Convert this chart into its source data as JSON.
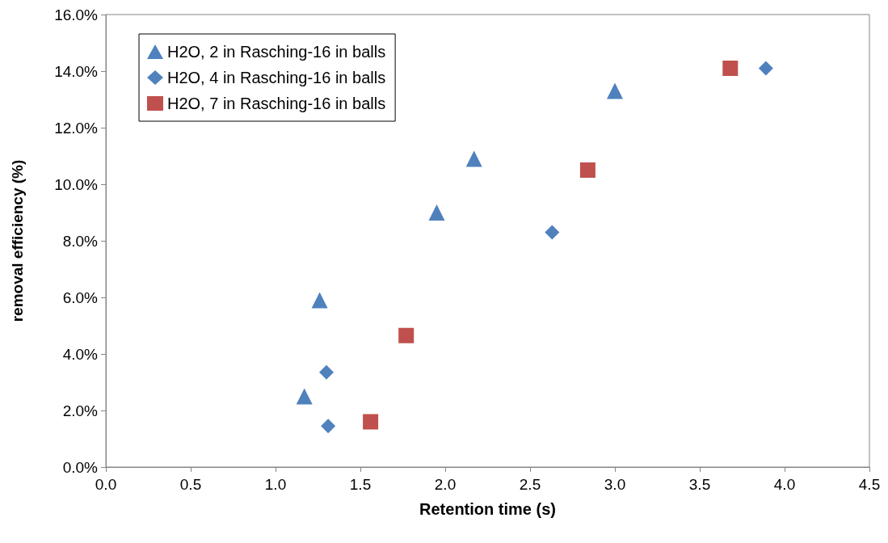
{
  "chart_data": {
    "type": "scatter",
    "xlabel": "Retention time (s)",
    "ylabel": "removal efficiency (%)",
    "xlim": [
      0,
      4.5
    ],
    "xticks": [
      {
        "value": 0,
        "label": "0.0"
      },
      {
        "value": 0.5,
        "label": "0.5"
      },
      {
        "value": 1,
        "label": "1.0"
      },
      {
        "value": 1.5,
        "label": "1.5"
      },
      {
        "value": 2,
        "label": "2.0"
      },
      {
        "value": 2.5,
        "label": "2.5"
      },
      {
        "value": 3,
        "label": "3.0"
      },
      {
        "value": 3.5,
        "label": "3.5"
      },
      {
        "value": 4,
        "label": "4.0"
      },
      {
        "value": 4.5,
        "label": "4.5"
      }
    ],
    "ylim": [
      0,
      16
    ],
    "yticks": [
      {
        "value": 0,
        "label": "0.0%"
      },
      {
        "value": 2,
        "label": "2.0%"
      },
      {
        "value": 4,
        "label": "4.0%"
      },
      {
        "value": 6,
        "label": "6.0%"
      },
      {
        "value": 8,
        "label": "8.0%"
      },
      {
        "value": 10,
        "label": "10.0%"
      },
      {
        "value": 12,
        "label": "12.0%"
      },
      {
        "value": 14,
        "label": "14.0%"
      },
      {
        "value": 16,
        "label": "16.0%"
      }
    ],
    "grid": false,
    "legend": "top left",
    "series": [
      {
        "name": "H2O, 2 in Rasching-16 in balls",
        "color": "#4f81bd",
        "marker": "triangle",
        "x": [
          1.17,
          1.26,
          1.95,
          2.17,
          3.0
        ],
        "values": [
          2.5,
          5.9,
          9.0,
          10.9,
          13.3
        ]
      },
      {
        "name": "H2O, 4 in Rasching-16 in balls",
        "color": "#4f81bd",
        "marker": "diamond",
        "x": [
          1.3,
          1.31,
          2.63,
          3.89
        ],
        "values": [
          3.35,
          1.45,
          8.3,
          14.1
        ]
      },
      {
        "name": "H2O, 7 in Rasching-16 in balls",
        "color": "#c0504d",
        "marker": "square",
        "x": [
          1.56,
          1.77,
          2.84,
          3.68
        ],
        "values": [
          1.6,
          4.65,
          10.5,
          14.1
        ]
      }
    ]
  }
}
